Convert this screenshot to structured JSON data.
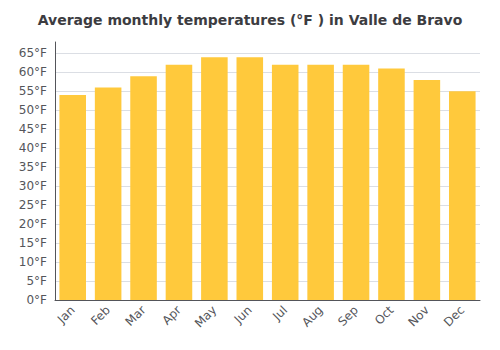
{
  "chart_data": {
    "type": "bar",
    "title": "Average monthly temperatures (°F ) in Valle de Bravo",
    "categories": [
      "Jan",
      "Feb",
      "Mar",
      "Apr",
      "May",
      "Jun",
      "Jul",
      "Aug",
      "Sep",
      "Oct",
      "Nov",
      "Dec"
    ],
    "values": [
      54,
      56,
      59,
      62,
      64,
      64,
      62,
      62,
      62,
      61,
      58,
      55
    ],
    "color": "#FFC93C",
    "ylim": [
      0,
      68
    ],
    "yticks": [
      {
        "value": 0,
        "label": "0°F"
      },
      {
        "value": 5,
        "label": "5°F"
      },
      {
        "value": 10,
        "label": "10°F"
      },
      {
        "value": 15,
        "label": "15°F"
      },
      {
        "value": 20,
        "label": "20°F"
      },
      {
        "value": 25,
        "label": "25°F"
      },
      {
        "value": 30,
        "label": "30°F"
      },
      {
        "value": 35,
        "label": "35°F"
      },
      {
        "value": 40,
        "label": "40°F"
      },
      {
        "value": 45,
        "label": "45°F"
      },
      {
        "value": 50,
        "label": "50°F"
      },
      {
        "value": 55,
        "label": "55°F"
      },
      {
        "value": 60,
        "label": "60°F"
      },
      {
        "value": 65,
        "label": "65°F"
      }
    ],
    "grid": true
  }
}
